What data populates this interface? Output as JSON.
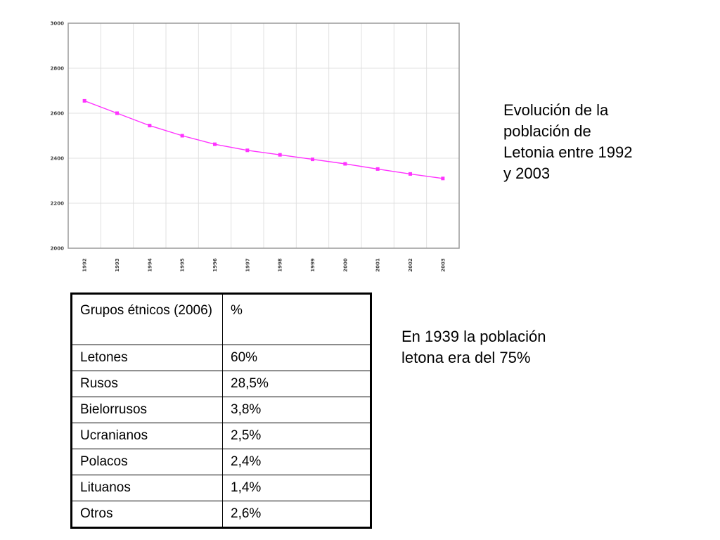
{
  "chart_data": {
    "type": "line",
    "title": "",
    "xlabel": "",
    "ylabel": "",
    "x": [
      "1992",
      "1993",
      "1994",
      "1995",
      "1996",
      "1997",
      "1998",
      "1999",
      "2000",
      "2001",
      "2002",
      "2003"
    ],
    "series": [
      {
        "values": [
          2655,
          2600,
          2545,
          2500,
          2462,
          2435,
          2415,
          2395,
          2375,
          2352,
          2330,
          2310
        ],
        "color": "#ff33ff",
        "marker": "square"
      }
    ],
    "ylim": [
      2000,
      3000
    ],
    "yticks": [
      "2000",
      "2200",
      "2400",
      "2600",
      "2800",
      "3000"
    ],
    "grid": true,
    "gridColor": "#e0e0e0",
    "axisColor": "#9a9a9a"
  },
  "chart_caption": "Evolución de la población de Letonia entre 1992 y 2003",
  "note": "En 1939 la población letona era del 75%",
  "table": {
    "header": [
      "Grupos étnicos (2006)",
      "%"
    ],
    "rows": [
      [
        "Letones",
        "60%"
      ],
      [
        "Rusos",
        "28,5%"
      ],
      [
        "Bielorrusos",
        "3,8%"
      ],
      [
        "Ucranianos",
        "2,5%"
      ],
      [
        "Polacos",
        "2,4%"
      ],
      [
        "Lituanos",
        "1,4%"
      ],
      [
        "Otros",
        "2,6%"
      ]
    ]
  }
}
